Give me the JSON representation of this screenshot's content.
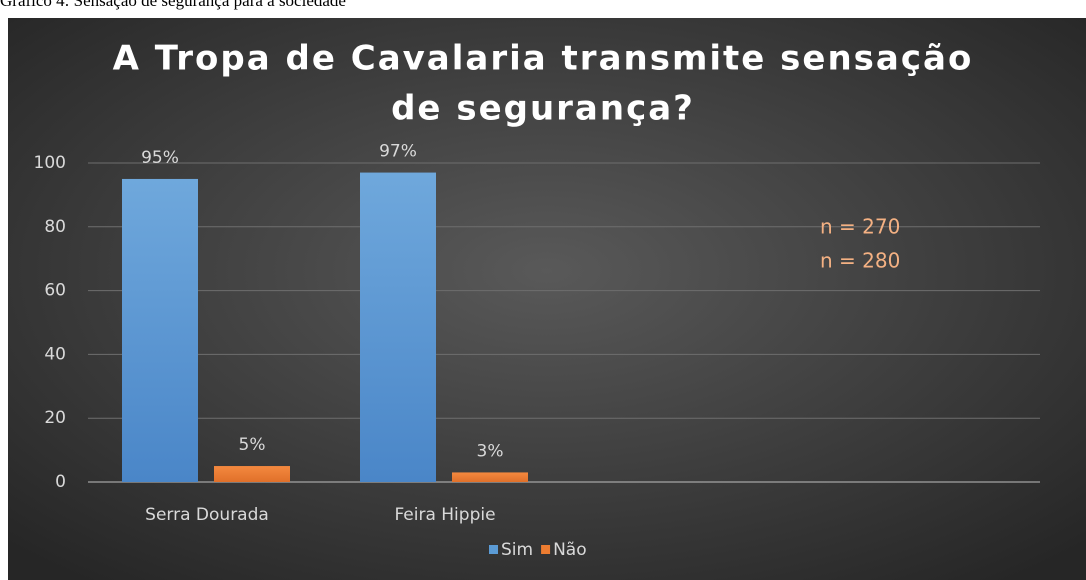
{
  "caption": "Gráfico 4: Sensação de segurança para a sociedade",
  "chart_data": {
    "type": "bar",
    "title": [
      "A Tropa de Cavalaria transmite sensação",
      "de segurança?"
    ],
    "categories": [
      "Serra Dourada",
      "Feira Hippie",
      null,
      null
    ],
    "series": [
      {
        "name": "Sim",
        "color": "#5b9bd5",
        "values": [
          95,
          97,
          null,
          null
        ],
        "value_labels": [
          "95%",
          "97%",
          null,
          null
        ]
      },
      {
        "name": "Não",
        "color": "#ed7d31",
        "values": [
          5,
          3,
          null,
          null
        ],
        "value_labels": [
          "5%",
          "3%",
          null,
          null
        ]
      }
    ],
    "ylim": [
      0,
      100
    ],
    "yticks": [
      0,
      20,
      40,
      60,
      80,
      100
    ],
    "grid": true,
    "legend": "bottom",
    "annotations": [
      {
        "text": "n = 270",
        "color": "#f4b183"
      },
      {
        "text": "n = 280",
        "color": "#f4b183"
      }
    ]
  }
}
